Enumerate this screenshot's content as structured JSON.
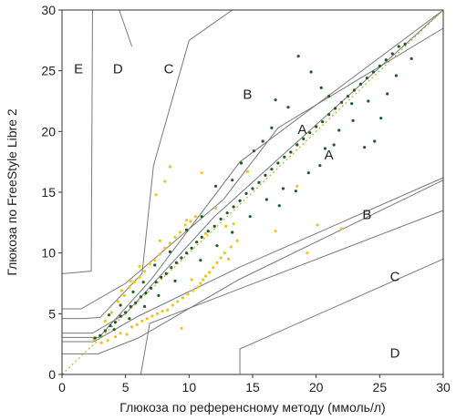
{
  "chart_data": {
    "type": "scatter",
    "title": "",
    "xlabel": "Глюкоза по референсному методу (ммоль/л)",
    "ylabel": "Глюкоза по FreeStyle Libre 2",
    "xlim": [
      0,
      30
    ],
    "ylim": [
      0,
      30
    ],
    "x_ticks": [
      0,
      5,
      10,
      15,
      20,
      25,
      30
    ],
    "y_ticks": [
      0,
      5,
      10,
      15,
      20,
      25,
      30
    ],
    "x_tick_labels": [
      "0",
      "5",
      "10",
      "15",
      "20",
      "25",
      "30"
    ],
    "y_tick_labels": [
      "0",
      "5",
      "10",
      "15",
      "20",
      "25",
      "30"
    ],
    "grid": false,
    "legend": "none",
    "identity_line": {
      "from": [
        0,
        0
      ],
      "to": [
        30,
        30
      ],
      "style": "dotted",
      "color": "#b9b236"
    },
    "zone_boundaries": [
      [
        [
          0,
          3.05
        ],
        [
          2.9,
          3.05
        ],
        [
          7,
          7.8
        ],
        [
          14,
          17.5
        ],
        [
          30,
          30
        ]
      ],
      [
        [
          0,
          1.7
        ],
        [
          2.85,
          1.7
        ],
        [
          6,
          3
        ],
        [
          13.9,
          7.8
        ],
        [
          30,
          16
        ]
      ],
      [
        [
          0,
          2.7
        ],
        [
          2.5,
          2.7
        ],
        [
          6,
          4.8
        ],
        [
          13.9,
          8.8
        ],
        [
          30,
          16.2
        ]
      ],
      [
        [
          0,
          3.4
        ],
        [
          2.4,
          3.4
        ],
        [
          5,
          5
        ],
        [
          12,
          13
        ],
        [
          30,
          30
        ]
      ],
      [
        [
          0,
          5.4
        ],
        [
          1.5,
          5.4
        ],
        [
          5,
          7.5
        ],
        [
          12.7,
          14.4
        ],
        [
          17,
          20.3
        ],
        [
          30,
          28.5
        ]
      ],
      [
        [
          0,
          8.3
        ],
        [
          2.3,
          8.5
        ],
        [
          2.4,
          30
        ]
      ],
      [
        [
          0,
          4.6
        ],
        [
          1.7,
          4.6
        ],
        [
          3,
          4.7
        ],
        [
          6.3,
          8.3
        ],
        [
          7.2,
          17.2
        ],
        [
          10,
          27.5
        ],
        [
          13.4,
          30
        ]
      ],
      [
        [
          4.5,
          30
        ],
        [
          5.5,
          27
        ]
      ],
      [
        [
          6.2,
          0
        ],
        [
          6.9,
          4.2
        ],
        [
          30,
          13.5
        ]
      ],
      [
        [
          14,
          0
        ],
        [
          14,
          2.1
        ],
        [
          30,
          9.5
        ]
      ]
    ],
    "zone_labels": [
      {
        "text": "E",
        "x": 1.3,
        "y": 25.1
      },
      {
        "text": "D",
        "x": 4.4,
        "y": 25.1
      },
      {
        "text": "C",
        "x": 8.4,
        "y": 25.1
      },
      {
        "text": "B",
        "x": 14.6,
        "y": 23.0
      },
      {
        "text": "A",
        "x": 18.9,
        "y": 20.1
      },
      {
        "text": "A",
        "x": 21.0,
        "y": 18.0
      },
      {
        "text": "B",
        "x": 24.0,
        "y": 13.1
      },
      {
        "text": "C",
        "x": 26.2,
        "y": 8.0
      },
      {
        "text": "D",
        "x": 26.2,
        "y": 1.7
      }
    ],
    "series": [
      {
        "color": "#f2c31f",
        "points": [
          [
            2.5,
            2.9
          ],
          [
            3.1,
            2.6
          ],
          [
            3.4,
            4.4
          ],
          [
            3.6,
            2.8
          ],
          [
            3.9,
            5.1
          ],
          [
            4.2,
            3.1
          ],
          [
            4.4,
            6.0
          ],
          [
            4.6,
            3.4
          ],
          [
            4.9,
            6.5
          ],
          [
            5.1,
            3.3
          ],
          [
            5.3,
            7.2
          ],
          [
            5.5,
            3.9
          ],
          [
            5.7,
            7.6
          ],
          [
            5.9,
            4.1
          ],
          [
            6.1,
            8.0
          ],
          [
            6.3,
            4.4
          ],
          [
            6.5,
            8.5
          ],
          [
            6.7,
            4.6
          ],
          [
            6.9,
            9.1
          ],
          [
            7.1,
            4.8
          ],
          [
            7.3,
            9.4
          ],
          [
            7.5,
            5.0
          ],
          [
            7.7,
            9.9
          ],
          [
            7.9,
            5.2
          ],
          [
            8.1,
            10.4
          ],
          [
            8.3,
            5.3
          ],
          [
            8.5,
            10.8
          ],
          [
            8.7,
            5.7
          ],
          [
            8.9,
            11.3
          ],
          [
            9.1,
            6.0
          ],
          [
            9.3,
            11.7
          ],
          [
            9.5,
            6.3
          ],
          [
            9.7,
            12.3
          ],
          [
            9.9,
            6.6
          ],
          [
            10.1,
            12.6
          ],
          [
            10.3,
            6.9
          ],
          [
            10.5,
            13.0
          ],
          [
            10.7,
            7.2
          ],
          [
            10.9,
            7.5
          ],
          [
            11.1,
            7.8
          ],
          [
            11.3,
            8.1
          ],
          [
            11.6,
            8.4
          ],
          [
            11.9,
            8.8
          ],
          [
            12.2,
            9.2
          ],
          [
            12.5,
            9.6
          ],
          [
            12.8,
            10.0
          ],
          [
            13.3,
            10.5
          ],
          [
            13.8,
            11.0
          ],
          [
            7.4,
            14.8
          ],
          [
            8.1,
            15.9
          ],
          [
            8.5,
            17.1
          ],
          [
            11.0,
            16.6
          ],
          [
            12.1,
            13.7
          ],
          [
            14.6,
            16.7
          ],
          [
            13.1,
            9.5
          ],
          [
            19.3,
            10.0
          ],
          [
            20.1,
            12.3
          ],
          [
            16.8,
            11.8
          ],
          [
            18.5,
            15.5
          ],
          [
            22.0,
            12.0
          ],
          [
            13.5,
            12.4
          ],
          [
            12.9,
            12.2
          ],
          [
            11.3,
            11.6
          ],
          [
            9.8,
            12.7
          ],
          [
            7.7,
            11.0
          ],
          [
            6.1,
            8.9
          ],
          [
            5.4,
            7.7
          ],
          [
            4.7,
            6.9
          ],
          [
            9.4,
            3.8
          ],
          [
            10.2,
            7.8
          ]
        ]
      },
      {
        "color": "#1e5c25",
        "points": [
          [
            2.6,
            3.0
          ],
          [
            3.0,
            3.2
          ],
          [
            3.4,
            3.6
          ],
          [
            3.8,
            4.0
          ],
          [
            4.2,
            4.3
          ],
          [
            4.6,
            4.8
          ],
          [
            5.0,
            5.1
          ],
          [
            5.4,
            5.6
          ],
          [
            5.8,
            5.9
          ],
          [
            6.2,
            6.4
          ],
          [
            6.6,
            6.7
          ],
          [
            7.0,
            7.1
          ],
          [
            7.4,
            7.6
          ],
          [
            7.8,
            8.0
          ],
          [
            8.2,
            8.3
          ],
          [
            8.6,
            8.8
          ],
          [
            9.0,
            9.2
          ],
          [
            9.4,
            9.6
          ],
          [
            9.8,
            10.0
          ],
          [
            10.2,
            10.4
          ],
          [
            10.6,
            10.9
          ],
          [
            11.0,
            11.3
          ],
          [
            11.5,
            11.8
          ],
          [
            12.0,
            12.2
          ],
          [
            12.5,
            12.8
          ],
          [
            13.0,
            13.3
          ],
          [
            13.5,
            13.8
          ],
          [
            14.0,
            14.3
          ],
          [
            14.5,
            14.9
          ],
          [
            15.0,
            15.3
          ],
          [
            15.5,
            15.8
          ],
          [
            16.0,
            16.4
          ],
          [
            16.5,
            16.9
          ],
          [
            17.0,
            17.4
          ],
          [
            17.5,
            17.9
          ],
          [
            18.0,
            18.3
          ],
          [
            18.5,
            18.9
          ],
          [
            19.0,
            19.4
          ],
          [
            19.5,
            19.9
          ],
          [
            20.0,
            20.4
          ],
          [
            20.5,
            20.8
          ],
          [
            21.0,
            21.4
          ],
          [
            21.5,
            21.9
          ],
          [
            22.0,
            22.4
          ],
          [
            22.5,
            22.9
          ],
          [
            23.0,
            23.4
          ],
          [
            23.5,
            23.9
          ],
          [
            24.0,
            24.4
          ],
          [
            24.5,
            24.9
          ],
          [
            25.0,
            25.4
          ],
          [
            25.5,
            25.9
          ],
          [
            26.0,
            26.4
          ],
          [
            26.5,
            27.0
          ],
          [
            27.0,
            27.2
          ],
          [
            27.5,
            26.0
          ],
          [
            18.6,
            26.2
          ],
          [
            19.6,
            24.9
          ],
          [
            20.4,
            23.6
          ],
          [
            21.0,
            22.9
          ],
          [
            22.8,
            22.3
          ],
          [
            23.8,
            18.7
          ],
          [
            24.6,
            19.2
          ],
          [
            25.1,
            21.1
          ],
          [
            16.5,
            20.3
          ],
          [
            16.8,
            22.6
          ],
          [
            17.8,
            22.0
          ],
          [
            17.1,
            13.9
          ],
          [
            18.4,
            15.1
          ],
          [
            19.4,
            16.6
          ],
          [
            20.3,
            17.2
          ],
          [
            21.4,
            18.9
          ],
          [
            12.1,
            15.5
          ],
          [
            13.4,
            16.0
          ],
          [
            14.1,
            17.4
          ],
          [
            15.1,
            18.4
          ],
          [
            15.8,
            19.2
          ],
          [
            11.0,
            13.0
          ],
          [
            9.8,
            11.9
          ],
          [
            8.5,
            10.1
          ],
          [
            7.3,
            9.0
          ],
          [
            6.4,
            7.6
          ],
          [
            5.6,
            6.8
          ],
          [
            4.6,
            5.7
          ],
          [
            3.7,
            4.9
          ],
          [
            10.9,
            9.4
          ],
          [
            12.2,
            10.6
          ],
          [
            13.4,
            11.7
          ],
          [
            14.8,
            13.0
          ],
          [
            16.1,
            14.4
          ],
          [
            17.4,
            15.3
          ],
          [
            8.9,
            7.7
          ],
          [
            7.6,
            6.5
          ],
          [
            6.5,
            5.6
          ],
          [
            5.3,
            4.6
          ],
          [
            4.1,
            3.7
          ],
          [
            26.3,
            24.6
          ],
          [
            25.6,
            23.1
          ],
          [
            24.1,
            22.5
          ],
          [
            22.9,
            20.9
          ],
          [
            21.8,
            20.1
          ],
          [
            20.7,
            18.6
          ]
        ]
      }
    ]
  }
}
